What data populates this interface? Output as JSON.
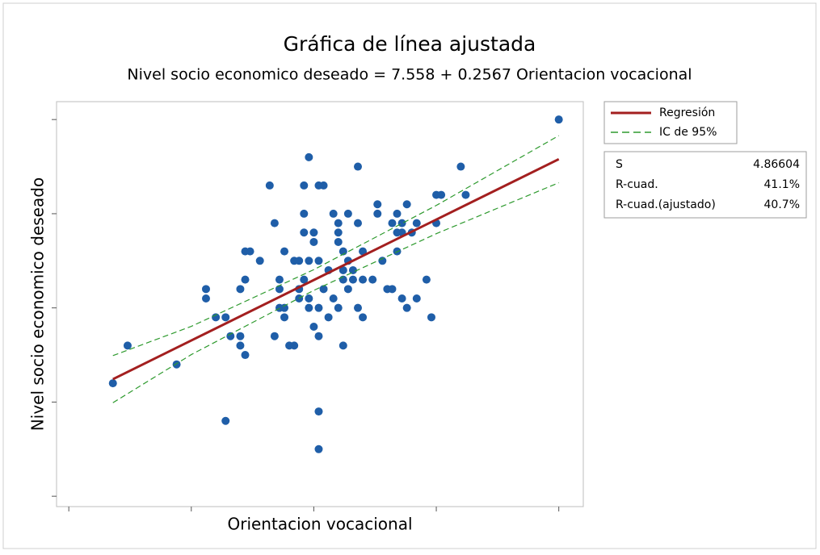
{
  "chart_data": {
    "type": "scatter",
    "title": "Gráfica de línea ajustada",
    "subtitle": "Nivel socio economico deseado = 7.558 + 0.2567 Orientacion vocacional",
    "x_label": "Orientacion vocacional",
    "y_label": "Nivel socio economico deseado",
    "point_color": "#1f5ea8",
    "x": [
      19,
      22,
      32,
      38,
      38,
      40,
      42,
      42,
      43,
      45,
      45,
      45,
      46,
      46,
      46,
      47,
      49,
      51,
      52,
      52,
      53,
      53,
      53,
      54,
      54,
      54,
      55,
      56,
      56,
      57,
      57,
      57,
      58,
      58,
      58,
      58,
      59,
      59,
      59,
      59,
      60,
      60,
      60,
      61,
      61,
      61,
      61,
      61,
      61,
      62,
      62,
      63,
      63,
      64,
      64,
      65,
      65,
      65,
      65,
      66,
      66,
      66,
      66,
      67,
      67,
      67,
      68,
      68,
      69,
      69,
      69,
      70,
      70,
      70,
      72,
      73,
      73,
      74,
      75,
      76,
      76,
      77,
      77,
      77,
      78,
      78,
      79,
      78,
      79,
      80,
      81,
      81,
      83,
      84,
      85,
      85,
      86,
      90,
      91,
      110
    ],
    "values": [
      12,
      16,
      14,
      22,
      21,
      19,
      19,
      8,
      17,
      17,
      16,
      22,
      15,
      23,
      26,
      26,
      25,
      33,
      29,
      17,
      22,
      20,
      23,
      20,
      26,
      19,
      16,
      16,
      25,
      25,
      22,
      21,
      28,
      30,
      33,
      23,
      36,
      25,
      21,
      20,
      27,
      18,
      28,
      25,
      20,
      33,
      9,
      5,
      17,
      22,
      33,
      24,
      19,
      30,
      21,
      29,
      28,
      27,
      20,
      26,
      24,
      23,
      16,
      30,
      25,
      22,
      24,
      23,
      35,
      20,
      29,
      26,
      23,
      19,
      23,
      31,
      30,
      25,
      22,
      22,
      29,
      30,
      28,
      26,
      28,
      29,
      31,
      21,
      20,
      28,
      29,
      21,
      23,
      19,
      32,
      29,
      32,
      35,
      32,
      40
    ],
    "series": [
      {
        "name": "Regresión",
        "color": "#a31f1f",
        "x": [
          19,
          35,
          60,
          85,
          110
        ],
        "values": [
          12.43,
          16.54,
          22.96,
          29.38,
          35.79
        ]
      },
      {
        "name": "IC de 95%",
        "color": "#2e9a2e",
        "x": [
          19,
          35,
          60,
          85,
          110
        ],
        "values": [
          14.93,
          18.04,
          24.06,
          30.88,
          38.29
        ],
        "lower": [
          9.93,
          15.04,
          21.86,
          27.88,
          33.29
        ]
      }
    ],
    "stats": {
      "labels": [
        "S",
        "R-cuad.",
        "R-cuad.(ajustado)"
      ],
      "values": [
        4.86604,
        41.1,
        40.7
      ],
      "value_labels": [
        "4.86604",
        "41.1%",
        "40.7%"
      ]
    },
    "xlim": [
      7.5,
      115
    ],
    "ylim": [
      -1.1,
      41.9
    ],
    "xticks": [
      10,
      35,
      60,
      85,
      110
    ],
    "yticks": [
      0,
      10,
      20,
      30,
      40
    ],
    "legend": "right"
  }
}
